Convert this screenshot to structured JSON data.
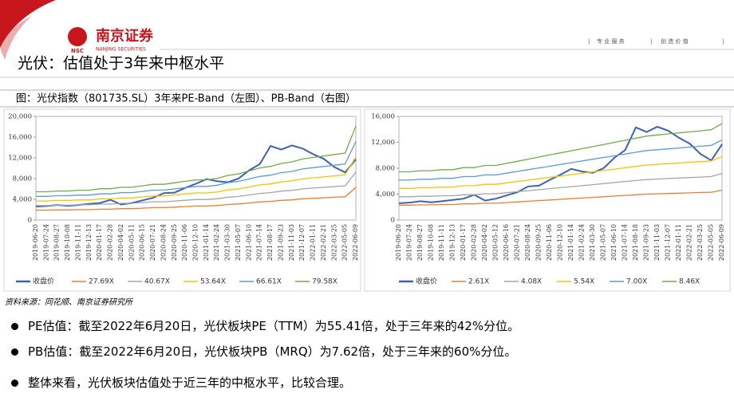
{
  "header": {
    "logo": "NSC",
    "brand": "南京证券",
    "brand_en": "NANJING SECURITIES",
    "slogan_1": "专 业 服 务",
    "slogan_2": "创 造 价 值"
  },
  "title": "光伏：估值处于3年来中枢水平",
  "caption": "图：光伏指数（801735.SL）3年来PE-Band（左图）、PB-Band（右图）",
  "source": "资料来源：同花顺、南京证券研究所",
  "bullets": [
    "PE估值：截至2022年6月20日，光伏板块PE（TTM）为55.41倍，处于三年来的42%分位。",
    "PB估值：截至2022年6月20日，光伏板块PB（MRQ）为7.62倍，处于三年来的60%分位。",
    "整体来看，光伏板块估值处于近三年的中枢水平，比较合理。"
  ],
  "chart_data": [
    {
      "type": "line",
      "legend": "bottom",
      "grid": false,
      "categories": [
        "2019-06-20",
        "2019-07-24",
        "2019-08-27",
        "2019-10-08",
        "2019-11-11",
        "2019-12-13",
        "2020-01-17",
        "2020-02-28",
        "2020-04-02",
        "2020-05-11",
        "2020-06-15",
        "2020-07-21",
        "2020-08-24",
        "2020-09-25",
        "2020-11-06",
        "2020-12-10",
        "2021-01-14",
        "2021-02-24",
        "2021-03-30",
        "2021-05-07",
        "2021-06-10",
        "2021-07-14",
        "2021-08-17",
        "2021-09-23",
        "2021-11-03",
        "2021-12-07",
        "2022-01-11",
        "2022-02-21",
        "2022-03-25",
        "2022-05-05",
        "2022-06-09"
      ],
      "ylim": [
        0,
        20000
      ],
      "yticks": [
        0,
        {
          "value": 4000,
          "label": "4,000"
        },
        {
          "value": 8000,
          "label": "8,000"
        },
        {
          "value": 12000,
          "label": "12,000"
        },
        {
          "value": 16000,
          "label": "16,000"
        },
        {
          "value": 20000,
          "label": "20,000"
        }
      ],
      "series": [
        {
          "name": "收盘价",
          "color": "#3b62b4",
          "values": [
            2600,
            2700,
            2900,
            2750,
            2900,
            3100,
            3300,
            3900,
            3000,
            3300,
            3800,
            4300,
            5200,
            5300,
            6200,
            7000,
            7900,
            7500,
            7300,
            8000,
            9600,
            10800,
            14300,
            13600,
            14400,
            13800,
            12700,
            11800,
            10200,
            9200,
            11700
          ]
        },
        {
          "name": "27.69X",
          "color": "#ed7d31",
          "values": [
            1900,
            1900,
            1950,
            1950,
            2000,
            2000,
            2100,
            2100,
            2200,
            2200,
            2300,
            2400,
            2400,
            2500,
            2600,
            2700,
            2700,
            2800,
            3000,
            3100,
            3300,
            3500,
            3600,
            3800,
            3900,
            4100,
            4200,
            4300,
            4400,
            4500,
            6300
          ]
        },
        {
          "name": "40.67X",
          "color": "#a5a5a5",
          "values": [
            2800,
            2800,
            2860,
            2860,
            2940,
            2940,
            3080,
            3080,
            3230,
            3230,
            3380,
            3530,
            3530,
            3670,
            3820,
            3970,
            3970,
            4110,
            4410,
            4550,
            4850,
            5140,
            5290,
            5580,
            5730,
            6020,
            6170,
            6320,
            6460,
            6610,
            9250
          ]
        },
        {
          "name": "53.64X",
          "color": "#ffc000",
          "values": [
            3680,
            3680,
            3780,
            3780,
            3870,
            3870,
            4070,
            4070,
            4260,
            4260,
            4460,
            4650,
            4650,
            4840,
            5040,
            5230,
            5230,
            5420,
            5810,
            6000,
            6390,
            6780,
            6970,
            7360,
            7550,
            7940,
            8140,
            8330,
            8520,
            8720,
            12200
          ]
        },
        {
          "name": "66.61X",
          "color": "#5b9bd5",
          "values": [
            4570,
            4570,
            4690,
            4690,
            4810,
            4810,
            5050,
            5050,
            5290,
            5290,
            5530,
            5770,
            5770,
            6010,
            6250,
            6490,
            6490,
            6730,
            7220,
            7460,
            7940,
            8420,
            8660,
            9140,
            9380,
            9860,
            10100,
            10340,
            10580,
            10820,
            15150
          ]
        },
        {
          "name": "79.58X",
          "color": "#70ad47",
          "values": [
            5460,
            5460,
            5600,
            5600,
            5750,
            5750,
            6040,
            6040,
            6320,
            6320,
            6610,
            6900,
            6900,
            7190,
            7470,
            7760,
            7760,
            8050,
            8620,
            8910,
            9480,
            10060,
            10350,
            10920,
            11210,
            11780,
            12070,
            12360,
            12650,
            12930,
            18110
          ]
        }
      ]
    },
    {
      "type": "line",
      "legend": "bottom",
      "grid": false,
      "categories": [
        "2019-06-20",
        "2019-07-24",
        "2019-08-27",
        "2019-10-08",
        "2019-11-11",
        "2019-12-13",
        "2020-01-17",
        "2020-02-28",
        "2020-04-02",
        "2020-05-12",
        "2020-06-16",
        "2020-07-21",
        "2020-08-24",
        "2020-09-25",
        "2020-11-06",
        "2020-12-10",
        "2021-01-14",
        "2021-02-24",
        "2021-03-30",
        "2021-05-07",
        "2021-06-10",
        "2021-07-14",
        "2021-08-18",
        "2021-09-23",
        "2021-11-03",
        "2021-12-07",
        "2022-01-11",
        "2022-02-21",
        "2022-03-25",
        "2022-05-05",
        "2022-06-09"
      ],
      "ylim": [
        0,
        16000
      ],
      "yticks": [
        0,
        {
          "value": 4000,
          "label": "4,000"
        },
        {
          "value": 8000,
          "label": "8,000"
        },
        {
          "value": 12000,
          "label": "12,000"
        },
        {
          "value": 16000,
          "label": "16,000"
        }
      ],
      "series": [
        {
          "name": "收盘价",
          "color": "#3b62b4",
          "values": [
            2600,
            2700,
            2900,
            2750,
            2900,
            3100,
            3300,
            3900,
            3000,
            3300,
            3800,
            4300,
            5200,
            5300,
            6200,
            7000,
            7900,
            7500,
            7300,
            8000,
            9600,
            10800,
            14300,
            13600,
            14400,
            13800,
            12700,
            11800,
            10200,
            9200,
            11700
          ]
        },
        {
          "name": "2.61X",
          "color": "#ed7d31",
          "values": [
            2300,
            2300,
            2350,
            2350,
            2400,
            2400,
            2500,
            2500,
            2600,
            2600,
            2700,
            2800,
            2900,
            3000,
            3100,
            3200,
            3300,
            3400,
            3500,
            3600,
            3700,
            3800,
            3900,
            4000,
            4050,
            4100,
            4150,
            4200,
            4250,
            4300,
            4600
          ]
        },
        {
          "name": "4.08X",
          "color": "#a5a5a5",
          "values": [
            3600,
            3600,
            3670,
            3670,
            3750,
            3750,
            3910,
            3910,
            4060,
            4060,
            4220,
            4380,
            4530,
            4690,
            4850,
            5000,
            5160,
            5310,
            5470,
            5630,
            5780,
            5940,
            6100,
            6250,
            6330,
            6410,
            6490,
            6560,
            6640,
            6720,
            7190
          ]
        },
        {
          "name": "5.54X",
          "color": "#ffc000",
          "values": [
            4880,
            4880,
            4990,
            4990,
            5100,
            5100,
            5310,
            5310,
            5520,
            5520,
            5730,
            5940,
            6160,
            6370,
            6580,
            6790,
            7010,
            7220,
            7430,
            7640,
            7860,
            8070,
            8280,
            8490,
            8600,
            8700,
            8810,
            8920,
            9020,
            9130,
            9770
          ]
        },
        {
          "name": "7.00X",
          "color": "#5b9bd5",
          "values": [
            6170,
            6170,
            6300,
            6300,
            6440,
            6440,
            6710,
            6710,
            6970,
            6970,
            7240,
            7510,
            7780,
            8050,
            8310,
            8580,
            8850,
            9120,
            9390,
            9660,
            9920,
            10190,
            10460,
            10730,
            10860,
            10990,
            11130,
            11260,
            11400,
            11530,
            12340
          ]
        },
        {
          "name": "8.46X",
          "color": "#70ad47",
          "values": [
            7450,
            7450,
            7620,
            7620,
            7780,
            7780,
            8100,
            8100,
            8430,
            8430,
            8750,
            9070,
            9400,
            9720,
            10050,
            10370,
            10700,
            11020,
            11340,
            11670,
            11990,
            12320,
            12640,
            12960,
            13130,
            13290,
            13450,
            13610,
            13770,
            13940,
            14910
          ]
        }
      ]
    }
  ]
}
